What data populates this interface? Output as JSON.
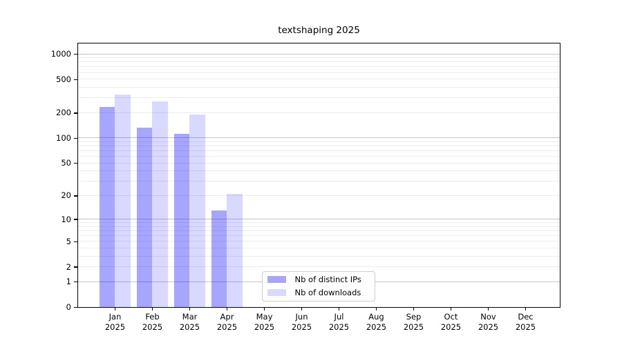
{
  "title": "textshaping 2025",
  "chart_data": {
    "type": "bar",
    "title": "textshaping 2025",
    "categories": [
      "Jan",
      "Feb",
      "Mar",
      "Apr",
      "May",
      "Jun",
      "Jul",
      "Aug",
      "Sep",
      "Oct",
      "Nov",
      "Dec"
    ],
    "year": "2025",
    "series": [
      {
        "name": "Nb of distinct IPs",
        "color": "#0000ff",
        "alpha": 0.35,
        "values": [
          232,
          133,
          111,
          13,
          0,
          0,
          0,
          0,
          0,
          0,
          0,
          0
        ]
      },
      {
        "name": "Nb of downloads",
        "color": "#0000ff",
        "alpha": 0.15,
        "values": [
          329,
          271,
          189,
          21,
          0,
          0,
          0,
          0,
          0,
          0,
          0,
          0
        ]
      }
    ],
    "xlabel": "",
    "ylabel": "",
    "yticks": [
      0,
      1,
      2,
      5,
      10,
      20,
      50,
      100,
      200,
      500,
      1000
    ],
    "scale": "log1p",
    "ylim": [
      0,
      1340
    ],
    "grid": true,
    "grid_major_color": "#c4c4c4",
    "grid_minor_color": "#ececec",
    "legend_position": "lower center"
  }
}
